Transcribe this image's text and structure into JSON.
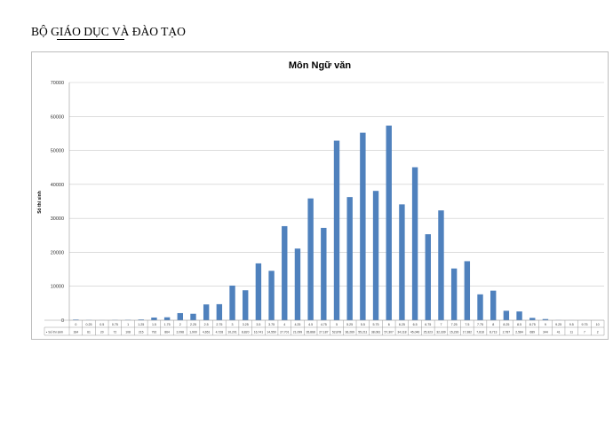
{
  "header": {
    "org": "BỘ GIÁO DỤC VÀ ĐÀO TẠO"
  },
  "chart_data": {
    "type": "bar",
    "title": "Môn Ngữ văn",
    "ylabel": "Số thí sinh",
    "xlabel": "",
    "ylim": [
      0,
      70000
    ],
    "yticks": [
      0,
      10000,
      20000,
      30000,
      40000,
      50000,
      60000,
      70000
    ],
    "grid": true,
    "legend": "none",
    "bar_color": "#4f81bd",
    "table_row_label": "Số thí sinh",
    "categories": [
      "0",
      "0.25",
      "0.5",
      "0.75",
      "1",
      "1.25",
      "1.5",
      "1.75",
      "2",
      "2.25",
      "2.5",
      "2.75",
      "3",
      "3.25",
      "3.5",
      "3.75",
      "4",
      "4.25",
      "4.5",
      "4.75",
      "5",
      "5.25",
      "5.5",
      "5.75",
      "6",
      "6.25",
      "6.5",
      "6.75",
      "7",
      "7.25",
      "7.5",
      "7.75",
      "8",
      "8.25",
      "8.5",
      "8.75",
      "9",
      "9.25",
      "9.5",
      "9.75",
      "10"
    ],
    "values": [
      184,
      61,
      20,
      72,
      108,
      215,
      792,
      864,
      2098,
      1900,
      4651,
      4728,
      10201,
      8820,
      16741,
      14550,
      27701,
      21099,
      35868,
      27187,
      52878,
      36269,
      55211,
      38081,
      57307,
      34118,
      45046,
      25323,
      32339,
      15236,
      17382,
      7618,
      8713,
      2787,
      2584,
      689,
      344,
      41,
      11,
      7,
      2
    ]
  }
}
